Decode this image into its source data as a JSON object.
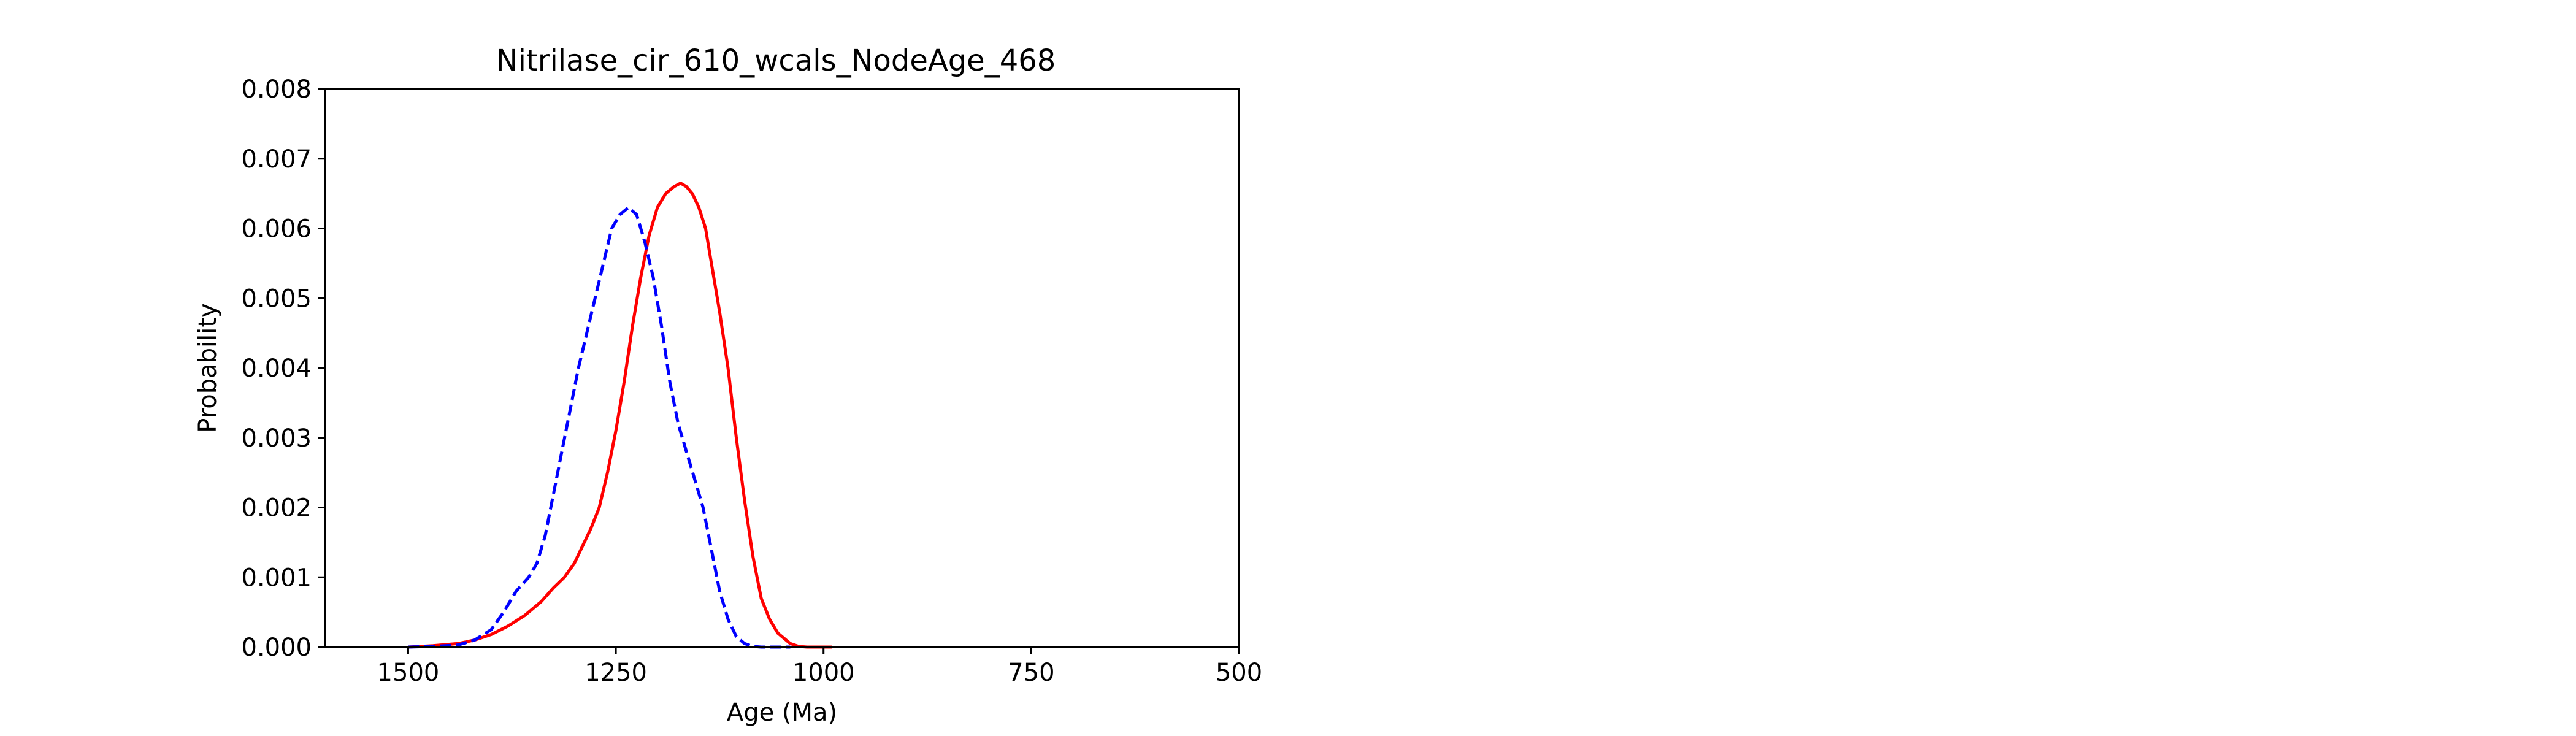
{
  "chart_data": {
    "type": "line",
    "title": "Nitrilase_cir_610_wcals_NodeAge_468",
    "xlabel": "Age (Ma)",
    "ylabel": "Probability",
    "xlim": [
      1600,
      500
    ],
    "ylim": [
      0,
      0.008
    ],
    "x_ticks": [
      "1500",
      "1250",
      "1000",
      "750",
      "500"
    ],
    "y_ticks": [
      "0.000",
      "0.001",
      "0.002",
      "0.003",
      "0.004",
      "0.005",
      "0.006",
      "0.007",
      "0.008"
    ],
    "grid": false,
    "legend": false,
    "series": [
      {
        "color": "#ff0000",
        "style": "solid",
        "x": [
          1500,
          1470,
          1440,
          1420,
          1400,
          1380,
          1360,
          1340,
          1325,
          1312,
          1300,
          1290,
          1280,
          1270,
          1260,
          1250,
          1240,
          1230,
          1220,
          1210,
          1200,
          1190,
          1180,
          1172,
          1165,
          1158,
          1150,
          1142,
          1135,
          1125,
          1115,
          1105,
          1095,
          1085,
          1075,
          1065,
          1055,
          1040,
          1030,
          1020,
          1010,
          1000,
          990
        ],
        "y": [
          0.0,
          2e-05,
          5e-05,
          0.0001,
          0.00018,
          0.0003,
          0.00045,
          0.00065,
          0.00085,
          0.001,
          0.0012,
          0.00145,
          0.0017,
          0.002,
          0.0025,
          0.0031,
          0.0038,
          0.0046,
          0.0053,
          0.0059,
          0.0063,
          0.0065,
          0.0066,
          0.00665,
          0.0066,
          0.0065,
          0.0063,
          0.006,
          0.0055,
          0.0048,
          0.004,
          0.003,
          0.0021,
          0.0013,
          0.0007,
          0.0004,
          0.0002,
          5e-05,
          1e-05,
          0.0,
          0.0,
          0.0,
          0.0
        ]
      },
      {
        "color": "#0000ff",
        "style": "dashed",
        "x": [
          1500,
          1470,
          1440,
          1420,
          1400,
          1385,
          1370,
          1355,
          1345,
          1335,
          1325,
          1315,
          1305,
          1295,
          1285,
          1275,
          1265,
          1255,
          1245,
          1235,
          1225,
          1215,
          1205,
          1195,
          1185,
          1175,
          1165,
          1155,
          1145,
          1135,
          1125,
          1115,
          1105,
          1095,
          1085,
          1075,
          1065,
          1050,
          1040
        ],
        "y": [
          0.0,
          1e-05,
          3e-05,
          0.0001,
          0.00025,
          0.0005,
          0.0008,
          0.001,
          0.0012,
          0.0016,
          0.0022,
          0.0028,
          0.0034,
          0.004,
          0.0045,
          0.005,
          0.0055,
          0.006,
          0.0062,
          0.0063,
          0.0062,
          0.0058,
          0.0053,
          0.0046,
          0.0038,
          0.0032,
          0.0028,
          0.0024,
          0.002,
          0.0014,
          0.0008,
          0.0004,
          0.00015,
          5e-05,
          1e-05,
          0.0,
          0.0,
          0.0,
          0.0
        ]
      }
    ]
  }
}
